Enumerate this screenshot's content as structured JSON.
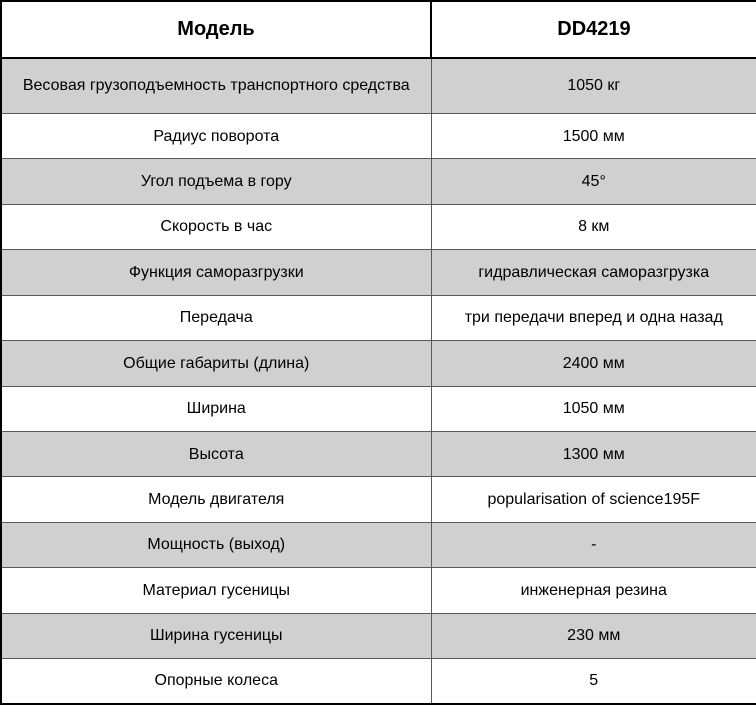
{
  "table": {
    "header": {
      "col1": "Модель",
      "col2": "DD4219"
    },
    "rows": [
      {
        "label": "Весовая грузоподъемность транспортного средства",
        "value": "1050 кг"
      },
      {
        "label": "Радиус поворота",
        "value": "1500 мм"
      },
      {
        "label": "Угол подъема в гору",
        "value": "45°"
      },
      {
        "label": "Скорость в час",
        "value": "8 км"
      },
      {
        "label": "Функция саморазгрузки",
        "value": "гидравлическая саморазгрузка"
      },
      {
        "label": "Передача",
        "value": "три передачи вперед и одна назад"
      },
      {
        "label": "Общие габариты (длина)",
        "value": "2400 мм"
      },
      {
        "label": "Ширина",
        "value": "1050 мм"
      },
      {
        "label": "Высота",
        "value": "1300 мм"
      },
      {
        "label": "Модель двигателя",
        "value": "popularisation of science195F"
      },
      {
        "label": "Мощность (выход)",
        "value": "-"
      },
      {
        "label": "Материал гусеницы",
        "value": "инженерная резина"
      },
      {
        "label": "Ширина гусеницы",
        "value": "230 мм"
      },
      {
        "label": "Опорные колеса",
        "value": "5"
      }
    ],
    "colors": {
      "row_shade": "#d0d0d0",
      "border_inner": "#595959",
      "border_outer": "#000000",
      "text": "#000000"
    }
  }
}
